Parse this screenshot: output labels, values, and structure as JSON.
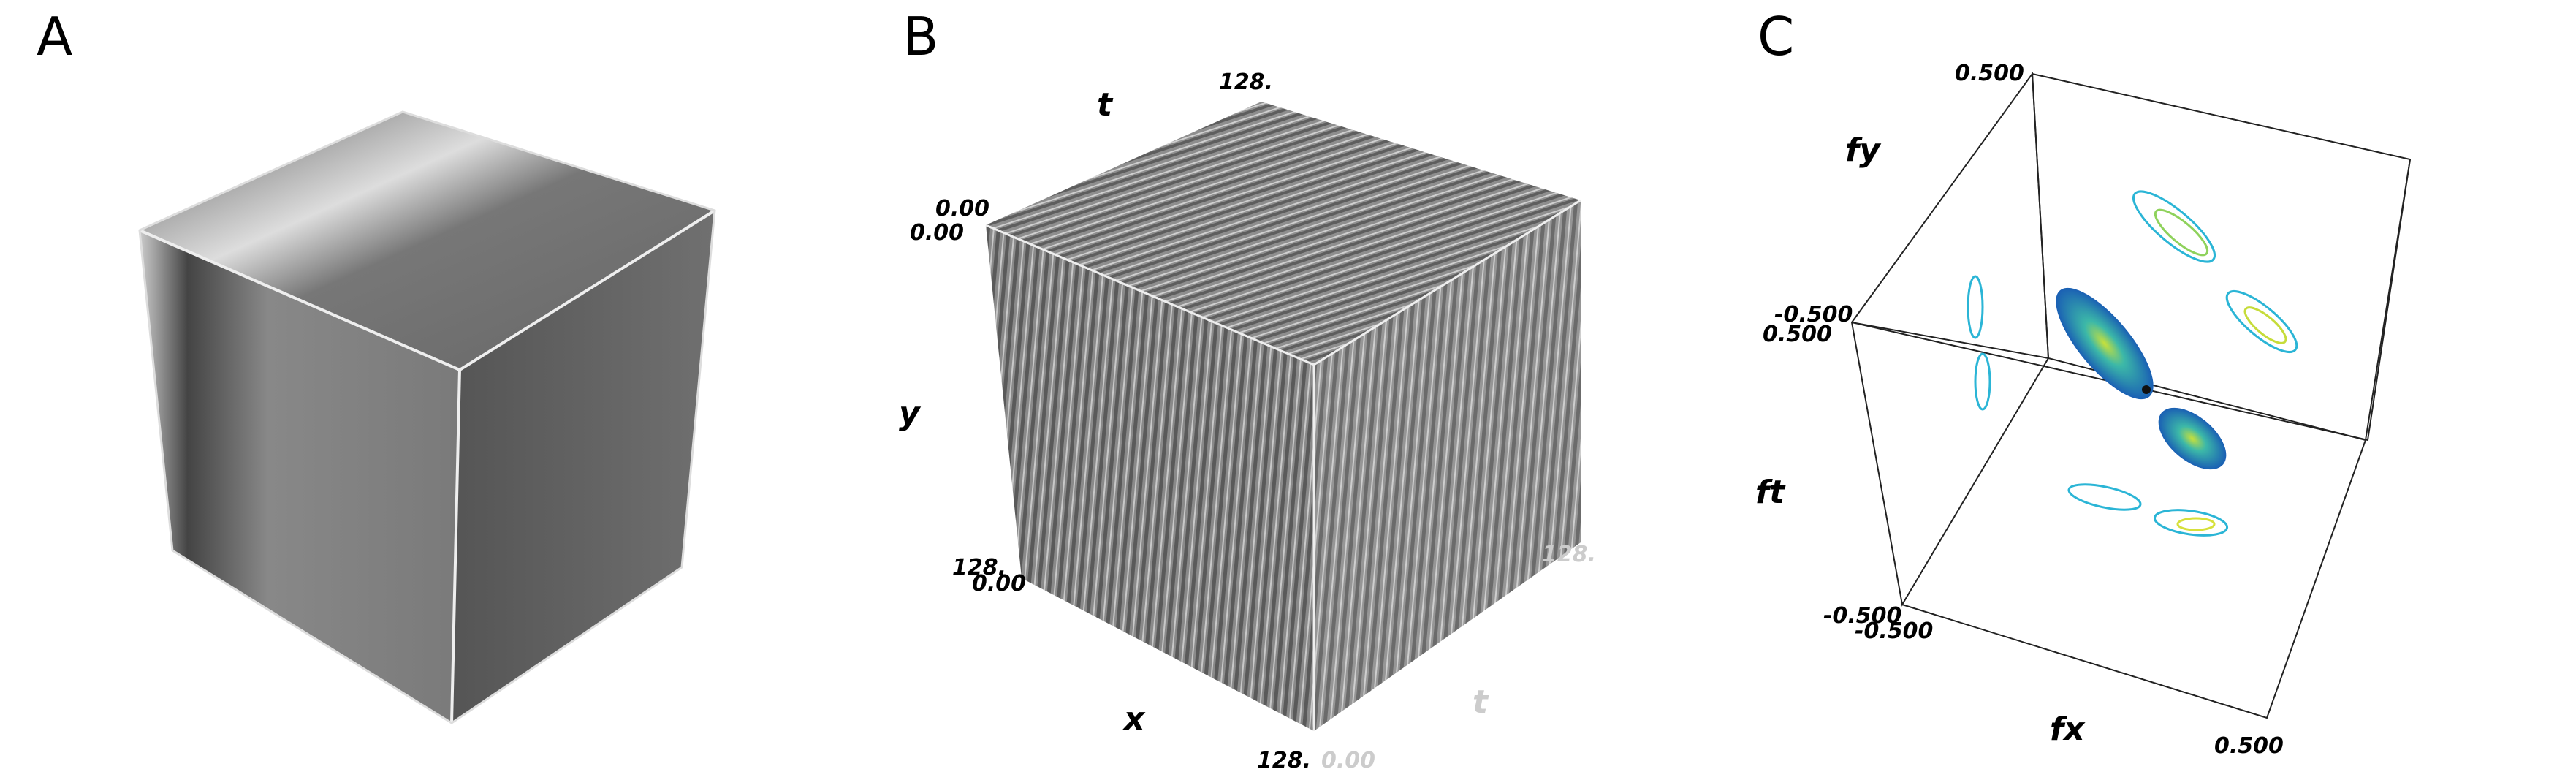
{
  "panels": [
    {
      "label": "A"
    },
    {
      "label": "B",
      "axis_texts": [
        "t",
        "128.",
        "0.00",
        "0.00",
        "y",
        "128.",
        "0.00",
        "x",
        "128.",
        "0.00",
        "128.",
        "t"
      ]
    },
    {
      "label": "C",
      "axis_texts": [
        "0.500",
        "fy",
        "-0.500",
        "0.500",
        "ft",
        "-0.500",
        "-0.500",
        "fx",
        "0.500"
      ]
    }
  ]
}
